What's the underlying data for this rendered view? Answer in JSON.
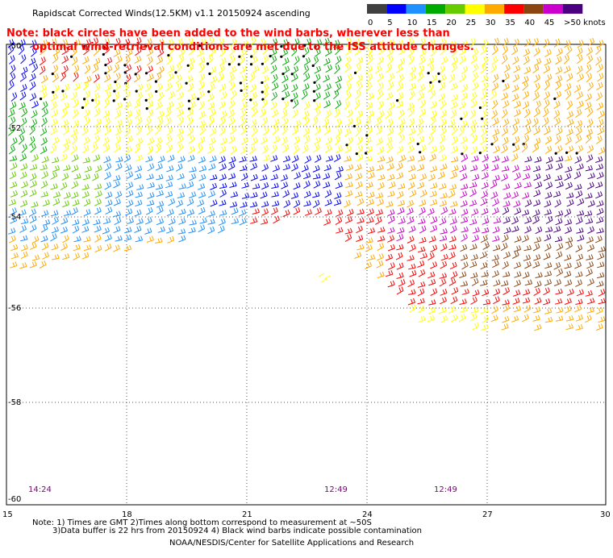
{
  "title": "Rapidscat Corrected Winds(12.5KM) v1.1 20150924 ascending",
  "note": [
    "Note: black circles have been added to the wind barbs, wherever less than",
    "optimal wind-retrieval conditions are met due to the ISS attitude changes."
  ],
  "legend": {
    "labels": [
      "0",
      "5",
      "10",
      "15",
      "20",
      "25",
      "30",
      "35",
      "40",
      "45",
      ">50 knots"
    ],
    "colors": [
      "#404040",
      "#0000ff",
      "#1e90ff",
      "#00aa00",
      "#66cc00",
      "#ffff00",
      "#ffaa00",
      "#ff0000",
      "#8b4513",
      "#cc00cc",
      "#4b0082"
    ]
  },
  "axes": {
    "lon_ticks": [
      "15",
      "18",
      "21",
      "24",
      "27",
      "30"
    ],
    "lat_ticks": [
      "-50",
      "-52",
      "-54",
      "-56",
      "-58",
      "-60"
    ]
  },
  "times": [
    "14:24",
    "12:49",
    "12:49"
  ],
  "footnotes": [
    "Note: 1) Times are GMT 2)Times along bottom correspond to measurement at ~50S",
    "3)Data buffer is 22 hrs from 20150924 4) Black wind barbs indicate possible contamination",
    "NOAA/NESDIS/Center for Satellite Applications and Research"
  ]
}
